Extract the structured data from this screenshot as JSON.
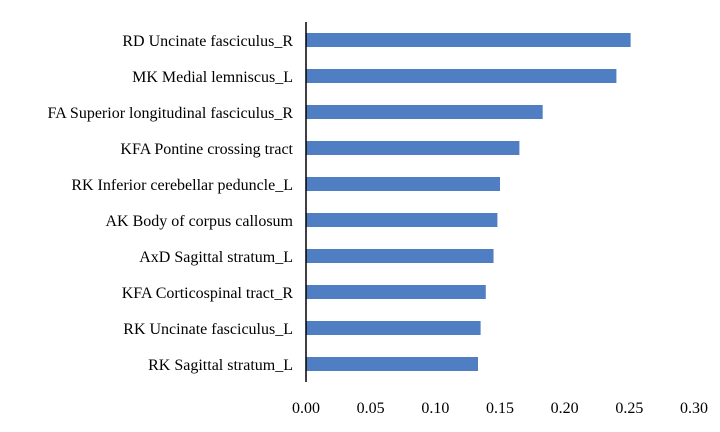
{
  "chart_data": {
    "type": "bar",
    "orientation": "horizontal",
    "title": "",
    "xlabel": "",
    "ylabel": "",
    "categories": [
      "RD Uncinate fasciculus_R",
      "MK Medial lemniscus_L",
      "FA Superior longitudinal fasciculus_R",
      "KFA Pontine crossing tract",
      "RK Inferior cerebellar peduncle_L",
      "AK Body of corpus callosum",
      "AxD Sagittal stratum_L",
      "KFA Corticospinal tract_R",
      "RK Uncinate fasciculus_L",
      "RK Sagittal stratum_L"
    ],
    "values": [
      0.251,
      0.24,
      0.183,
      0.165,
      0.15,
      0.148,
      0.145,
      0.139,
      0.135,
      0.133
    ],
    "xlim": [
      0,
      0.3
    ],
    "xticks": [
      "0.00",
      "0.05",
      "0.10",
      "0.15",
      "0.20",
      "0.25",
      "0.30"
    ],
    "grid": false,
    "legend": "none",
    "bar_color": "#4F7EC2",
    "axis_color": "#000000"
  }
}
